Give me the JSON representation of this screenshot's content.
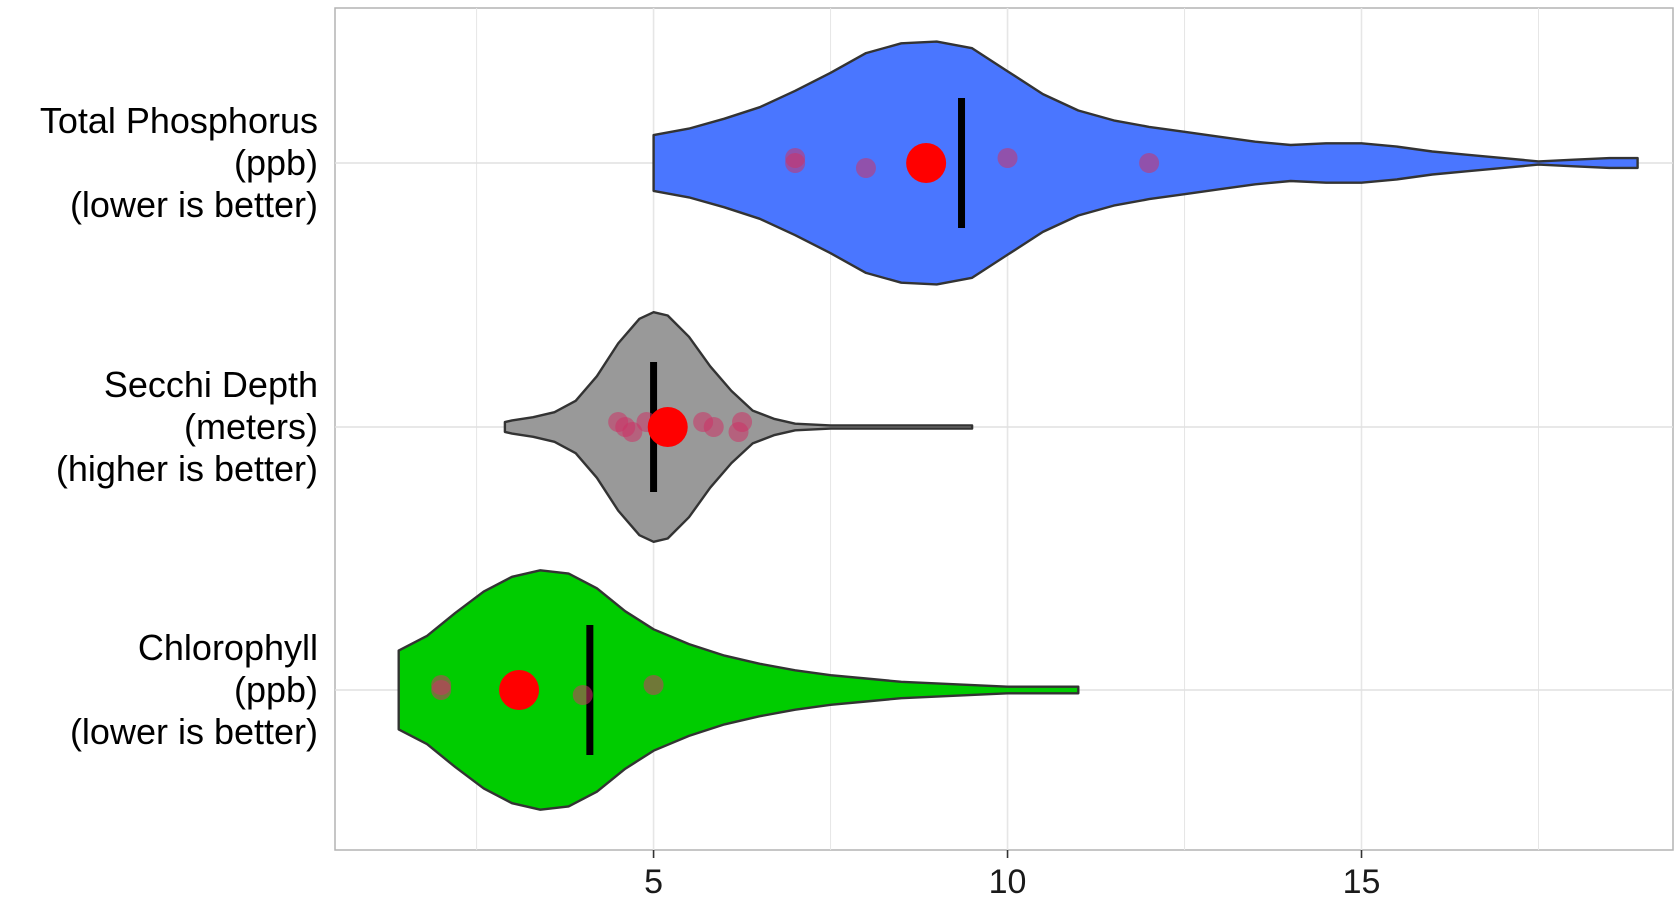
{
  "chart_data": {
    "type": "violin",
    "orientation": "horizontal",
    "title": "",
    "xlabel": "",
    "ylabel": "",
    "xlim": [
      0.5,
      19.4
    ],
    "x_ticks": [
      5,
      10,
      15
    ],
    "x_tick_labels": [
      "5",
      "10",
      "15"
    ],
    "grid": true,
    "categories": [
      {
        "key": "total-phosphorus",
        "label_lines": [
          "Total Phosphorus",
          "(ppb)",
          "(lower is better)"
        ],
        "fill_color": "#4a76ff",
        "min": 5.0,
        "max": 18.9,
        "median": 9.35,
        "mean": 8.85,
        "observations": [
          7,
          7,
          8,
          10,
          12
        ],
        "density_profile": [
          [
            5.0,
            0.17
          ],
          [
            5.5,
            0.21
          ],
          [
            6.0,
            0.27
          ],
          [
            6.5,
            0.34
          ],
          [
            7.0,
            0.44
          ],
          [
            7.5,
            0.55
          ],
          [
            8.0,
            0.67
          ],
          [
            8.5,
            0.73
          ],
          [
            9.0,
            0.74
          ],
          [
            9.5,
            0.7
          ],
          [
            10.0,
            0.56
          ],
          [
            10.5,
            0.42
          ],
          [
            11.0,
            0.32
          ],
          [
            11.5,
            0.26
          ],
          [
            12.0,
            0.22
          ],
          [
            12.5,
            0.19
          ],
          [
            13.0,
            0.16
          ],
          [
            13.5,
            0.13
          ],
          [
            14.0,
            0.11
          ],
          [
            14.5,
            0.12
          ],
          [
            15.0,
            0.12
          ],
          [
            15.5,
            0.1
          ],
          [
            16.0,
            0.07
          ],
          [
            16.5,
            0.05
          ],
          [
            17.0,
            0.03
          ],
          [
            17.5,
            0.01
          ],
          [
            18.0,
            0.02
          ],
          [
            18.5,
            0.03
          ],
          [
            18.9,
            0.03
          ]
        ]
      },
      {
        "key": "secchi-depth",
        "label_lines": [
          "Secchi Depth",
          "(meters)",
          "(higher is better)"
        ],
        "fill_color": "#999999",
        "min": 2.9,
        "max": 9.5,
        "median": 5.0,
        "mean": 5.2,
        "observations": [
          4.5,
          4.6,
          4.7,
          4.9,
          5.1,
          5.3,
          5.7,
          5.85,
          6.2,
          6.25
        ],
        "density_profile": [
          [
            2.9,
            0.03
          ],
          [
            3.0,
            0.04
          ],
          [
            3.3,
            0.06
          ],
          [
            3.6,
            0.09
          ],
          [
            3.9,
            0.16
          ],
          [
            4.2,
            0.31
          ],
          [
            4.5,
            0.51
          ],
          [
            4.8,
            0.66
          ],
          [
            5.0,
            0.7
          ],
          [
            5.2,
            0.68
          ],
          [
            5.5,
            0.55
          ],
          [
            5.8,
            0.37
          ],
          [
            6.1,
            0.22
          ],
          [
            6.4,
            0.1
          ],
          [
            6.7,
            0.05
          ],
          [
            7.0,
            0.02
          ],
          [
            7.5,
            0.01
          ],
          [
            8.0,
            0.01
          ],
          [
            8.5,
            0.01
          ],
          [
            9.0,
            0.01
          ],
          [
            9.5,
            0.01
          ]
        ]
      },
      {
        "key": "chlorophyll",
        "label_lines": [
          "Chlorophyll",
          "(ppb)",
          "(lower is better)"
        ],
        "fill_color": "#00cc00",
        "min": 1.4,
        "max": 11.0,
        "median": 4.1,
        "mean": 3.1,
        "observations": [
          2,
          2,
          4,
          5
        ],
        "density_profile": [
          [
            1.4,
            0.24
          ],
          [
            1.8,
            0.33
          ],
          [
            2.2,
            0.47
          ],
          [
            2.6,
            0.6
          ],
          [
            3.0,
            0.69
          ],
          [
            3.4,
            0.73
          ],
          [
            3.8,
            0.71
          ],
          [
            4.2,
            0.62
          ],
          [
            4.6,
            0.48
          ],
          [
            5.0,
            0.37
          ],
          [
            5.5,
            0.28
          ],
          [
            6.0,
            0.21
          ],
          [
            6.5,
            0.16
          ],
          [
            7.0,
            0.12
          ],
          [
            7.5,
            0.09
          ],
          [
            8.0,
            0.07
          ],
          [
            8.5,
            0.05
          ],
          [
            9.0,
            0.04
          ],
          [
            9.5,
            0.03
          ],
          [
            10.0,
            0.02
          ],
          [
            10.5,
            0.02
          ],
          [
            11.0,
            0.02
          ]
        ]
      }
    ],
    "point_color": "#ff0000",
    "obs_point_color": "#cc3366",
    "median_bar_color": "#000000",
    "outline_color": "#333333"
  }
}
